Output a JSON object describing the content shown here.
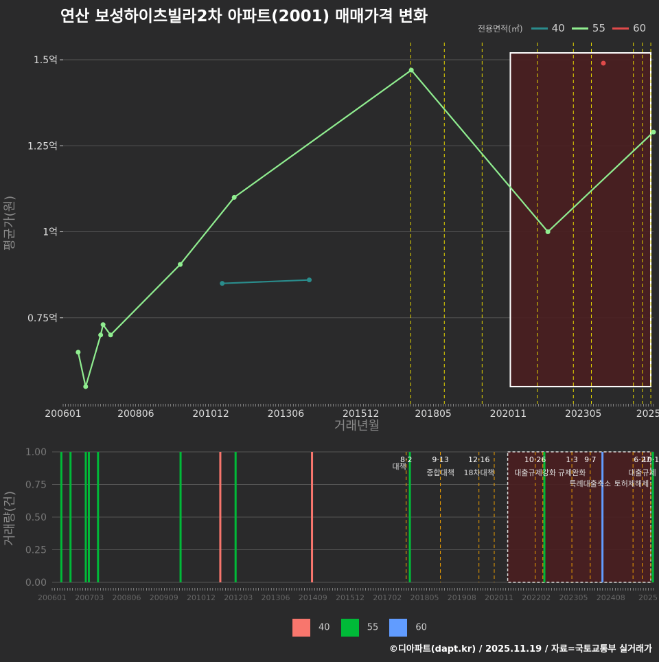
{
  "title": "연산 보성하이츠빌라2차 아파트(2001) 매매가격 변화",
  "credit": "©디아파트(dapt.kr) / 2025.11.19 / 자료=국토교통부 실거래가",
  "colors": {
    "background": "#2a2a2b",
    "s40": "#2a8c8c",
    "s55": "#90ee90",
    "s60": "#e04a4a",
    "bar40": "#f8766d",
    "bar55": "#00ba38",
    "bar60": "#619cff",
    "vline": "#e6d800",
    "vline_bottom": "#f0a000",
    "highlight": "#4a1e20"
  },
  "legend_top": {
    "title": "전용면적(㎡)",
    "items": [
      "40",
      "55",
      "60"
    ]
  },
  "legend_bottom": {
    "items": [
      "40",
      "55",
      "60"
    ]
  },
  "chart_data": [
    {
      "type": "line",
      "name": "price-chart",
      "xlabel": "거래년월",
      "ylabel": "평균가(원)",
      "xlim": [
        2006.0,
        2025.67
      ],
      "ylim": [
        0.5,
        1.55
      ],
      "x_ticks": [
        {
          "label": "200601",
          "x": 2006.0
        },
        {
          "label": "200806",
          "x": 2008.42
        },
        {
          "label": "201012",
          "x": 2010.92
        },
        {
          "label": "201306",
          "x": 2013.42
        },
        {
          "label": "201512",
          "x": 2015.92
        },
        {
          "label": "201805",
          "x": 2018.33
        },
        {
          "label": "202011",
          "x": 2020.83
        },
        {
          "label": "202305",
          "x": 2023.33
        },
        {
          "label": "2025",
          "x": 2025.5
        }
      ],
      "y_ticks": [
        {
          "label": "0.75억",
          "y": 0.75
        },
        {
          "label": "1억",
          "y": 1.0
        },
        {
          "label": "1.25억",
          "y": 1.25
        },
        {
          "label": "1.5억",
          "y": 1.5
        }
      ],
      "highlight_range": [
        2020.9,
        2025.67
      ],
      "highlight_y": [
        0.55,
        1.52
      ],
      "policy_lines": [
        2017.58,
        2018.7,
        2019.96,
        2021.8,
        2023.0,
        2023.6,
        2025.0,
        2025.3,
        2025.58
      ],
      "series": [
        {
          "name": "40",
          "points": [
            [
              2011.3,
              0.85
            ],
            [
              2014.2,
              0.86
            ]
          ]
        },
        {
          "name": "55",
          "points": [
            [
              2006.5,
              0.65
            ],
            [
              2006.75,
              0.55
            ],
            [
              2007.25,
              0.7
            ],
            [
              2007.33,
              0.73
            ],
            [
              2007.58,
              0.7
            ],
            [
              2009.9,
              0.905
            ],
            [
              2011.7,
              1.1
            ],
            [
              2017.6,
              1.47
            ],
            [
              2022.15,
              1.0
            ],
            [
              2025.67,
              1.29
            ]
          ]
        },
        {
          "name": "60",
          "points": [
            [
              2024.0,
              1.49
            ]
          ]
        }
      ]
    },
    {
      "type": "bar",
      "name": "volume-chart",
      "xlabel": "",
      "ylabel": "거래량(건)",
      "xlim": [
        2006.0,
        2025.67
      ],
      "ylim": [
        0,
        1.0
      ],
      "x_ticks": [
        "200601",
        "200703",
        "200806",
        "200909",
        "201012",
        "201203",
        "201306",
        "201409",
        "201512",
        "201702",
        "201805",
        "201908",
        "202011",
        "202202",
        "202305",
        "202408",
        "2025"
      ],
      "y_ticks": [
        "0.00",
        "0.25",
        "0.50",
        "0.75",
        "1.00"
      ],
      "highlight_range": [
        2020.9,
        2025.67
      ],
      "policy_lines": [
        2017.58,
        2018.7,
        2019.96,
        2020.46,
        2021.8,
        2022.05,
        2023.0,
        2023.6,
        2024.0,
        2025.0,
        2025.3,
        2025.58
      ],
      "bars": [
        {
          "x": 2006.3,
          "value": 1,
          "series": "55"
        },
        {
          "x": 2006.6,
          "value": 1,
          "series": "55"
        },
        {
          "x": 2007.1,
          "value": 1,
          "series": "55"
        },
        {
          "x": 2007.2,
          "value": 1,
          "series": "55"
        },
        {
          "x": 2007.5,
          "value": 1,
          "series": "55"
        },
        {
          "x": 2010.2,
          "value": 1,
          "series": "55"
        },
        {
          "x": 2011.5,
          "value": 1,
          "series": "40"
        },
        {
          "x": 2012.0,
          "value": 1,
          "series": "55"
        },
        {
          "x": 2014.5,
          "value": 1,
          "series": "40"
        },
        {
          "x": 2017.7,
          "value": 1,
          "series": "55"
        },
        {
          "x": 2022.1,
          "value": 1,
          "series": "55"
        },
        {
          "x": 2024.0,
          "value": 1,
          "series": "60"
        },
        {
          "x": 2025.65,
          "value": 1,
          "series": "55"
        }
      ],
      "annotations": [
        {
          "date": "8·2",
          "text": "대책",
          "x": 2017.58
        },
        {
          "date": "9·13",
          "text": "종합대책",
          "x": 2018.7
        },
        {
          "date": "12·16",
          "text": "18차대책",
          "x": 2019.96
        },
        {
          "date": "10·26",
          "text": "대출규제강화",
          "x": 2021.8
        },
        {
          "date": "1·3",
          "text": "규제완화",
          "x": 2023.0
        },
        {
          "date": "9·7",
          "text": "특례대출축소",
          "x": 2023.6
        },
        {
          "date": "",
          "text": "토허제해제",
          "x": 2024.95
        },
        {
          "date": "6·27",
          "text": "대출규제",
          "x": 2025.3
        },
        {
          "date": "10·1",
          "text": "",
          "x": 2025.58
        }
      ]
    }
  ]
}
